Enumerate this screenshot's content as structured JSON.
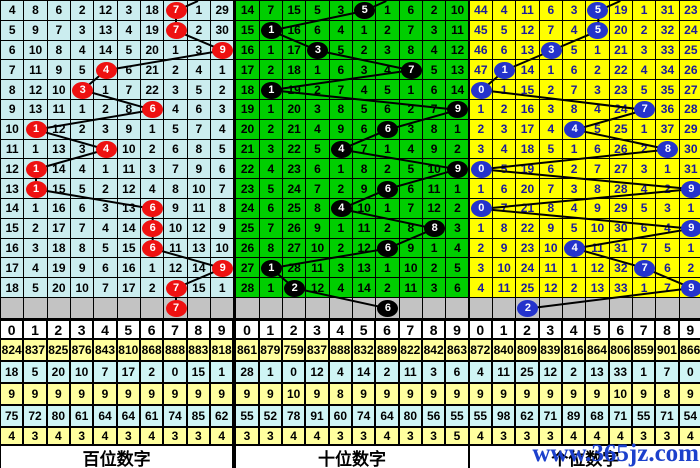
{
  "watermark": "www.365jz.com",
  "digits_header": [
    "0",
    "1",
    "2",
    "3",
    "4",
    "5",
    "6",
    "7",
    "8",
    "9"
  ],
  "chart_data": {
    "type": "table",
    "title": "lottery digit trend chart (3 panels: hundreds / tens / ones)",
    "panels": [
      {
        "id": "hundreds",
        "footer_label": "百位数字",
        "theme": {
          "cell_bg": "#cbedef",
          "text": "#000000",
          "ball": "#ee1111",
          "ball_text": "#ffffff"
        },
        "grid": [
          [
            4,
            8,
            6,
            2,
            12,
            3,
            18,
            7,
            1,
            29
          ],
          [
            5,
            9,
            7,
            3,
            13,
            4,
            19,
            7,
            2,
            30
          ],
          [
            6,
            10,
            8,
            4,
            14,
            5,
            20,
            1,
            3,
            9
          ],
          [
            7,
            11,
            9,
            5,
            4,
            6,
            21,
            2,
            4,
            1
          ],
          [
            8,
            12,
            10,
            3,
            1,
            7,
            22,
            3,
            5,
            2
          ],
          [
            9,
            13,
            11,
            1,
            2,
            8,
            6,
            4,
            6,
            3
          ],
          [
            10,
            1,
            12,
            2,
            3,
            9,
            1,
            5,
            7,
            4
          ],
          [
            11,
            1,
            13,
            3,
            4,
            10,
            2,
            6,
            8,
            5
          ],
          [
            12,
            1,
            14,
            4,
            1,
            11,
            3,
            7,
            9,
            6
          ],
          [
            13,
            1,
            15,
            5,
            2,
            12,
            4,
            8,
            10,
            7
          ],
          [
            14,
            1,
            16,
            6,
            3,
            13,
            6,
            9,
            11,
            8
          ],
          [
            15,
            2,
            17,
            7,
            4,
            14,
            6,
            10,
            12,
            9
          ],
          [
            16,
            3,
            18,
            8,
            5,
            15,
            6,
            11,
            13,
            10
          ],
          [
            17,
            4,
            19,
            9,
            6,
            16,
            1,
            12,
            14,
            9
          ],
          [
            18,
            5,
            20,
            10,
            7,
            17,
            2,
            7,
            15,
            1
          ]
        ],
        "ball_cells": [
          [
            0,
            7
          ],
          [
            1,
            7
          ],
          [
            2,
            9
          ],
          [
            3,
            4
          ],
          [
            4,
            3
          ],
          [
            5,
            6
          ],
          [
            6,
            1
          ],
          [
            7,
            4
          ],
          [
            8,
            1
          ],
          [
            9,
            1
          ],
          [
            10,
            6
          ],
          [
            11,
            6
          ],
          [
            12,
            6
          ],
          [
            13,
            9
          ],
          [
            14,
            7
          ]
        ],
        "gray_ball_col": 7,
        "stats_rows": [
          {
            "bg": "#ffff9e",
            "values": [
              824,
              837,
              825,
              876,
              843,
              810,
              868,
              888,
              883,
              818
            ]
          },
          {
            "bg": "#cff5f5",
            "values": [
              18,
              5,
              20,
              10,
              7,
              17,
              2,
              0,
              15,
              1
            ]
          },
          {
            "bg": "#ffff9e",
            "values": [
              9,
              9,
              9,
              9,
              9,
              9,
              9,
              9,
              9,
              9
            ]
          },
          {
            "bg": "#cff5f5",
            "values": [
              75,
              72,
              80,
              61,
              64,
              64,
              61,
              74,
              85,
              62
            ]
          },
          {
            "bg": "#ffff9e",
            "values": [
              4,
              3,
              4,
              3,
              4,
              3,
              4,
              3,
              3,
              4
            ]
          }
        ]
      },
      {
        "id": "tens",
        "footer_label": "十位数字",
        "theme": {
          "cell_bg": "#00ce00",
          "text": "#000000",
          "ball": "#000000",
          "ball_text": "#ffffff"
        },
        "grid": [
          [
            14,
            7,
            15,
            5,
            3,
            5,
            1,
            6,
            2,
            10
          ],
          [
            15,
            1,
            16,
            6,
            4,
            1,
            2,
            7,
            3,
            11
          ],
          [
            16,
            1,
            17,
            3,
            5,
            2,
            3,
            8,
            4,
            12
          ],
          [
            17,
            2,
            18,
            1,
            6,
            3,
            4,
            7,
            5,
            13
          ],
          [
            18,
            1,
            19,
            2,
            7,
            4,
            5,
            1,
            6,
            14
          ],
          [
            19,
            1,
            20,
            3,
            8,
            5,
            6,
            2,
            7,
            9
          ],
          [
            20,
            2,
            21,
            4,
            9,
            6,
            6,
            3,
            8,
            1
          ],
          [
            21,
            3,
            22,
            5,
            4,
            7,
            1,
            4,
            9,
            2
          ],
          [
            22,
            4,
            23,
            6,
            1,
            8,
            2,
            5,
            10,
            9
          ],
          [
            23,
            5,
            24,
            7,
            2,
            9,
            6,
            6,
            11,
            1
          ],
          [
            24,
            6,
            25,
            8,
            4,
            10,
            1,
            7,
            12,
            2
          ],
          [
            25,
            7,
            26,
            9,
            1,
            11,
            2,
            8,
            8,
            3
          ],
          [
            26,
            8,
            27,
            10,
            2,
            12,
            6,
            9,
            1,
            4
          ],
          [
            27,
            1,
            28,
            11,
            3,
            13,
            1,
            10,
            2,
            5
          ],
          [
            28,
            1,
            2,
            12,
            4,
            14,
            2,
            11,
            3,
            6
          ]
        ],
        "ball_cells": [
          [
            0,
            5
          ],
          [
            1,
            1
          ],
          [
            2,
            3
          ],
          [
            3,
            7
          ],
          [
            4,
            1
          ],
          [
            5,
            9
          ],
          [
            6,
            6
          ],
          [
            7,
            4
          ],
          [
            8,
            9
          ],
          [
            9,
            6
          ],
          [
            10,
            4
          ],
          [
            11,
            8
          ],
          [
            12,
            6
          ],
          [
            13,
            1
          ],
          [
            14,
            2
          ]
        ],
        "gray_ball_col": 6,
        "stats_rows": [
          {
            "bg": "#ffff9e",
            "values": [
              861,
              879,
              759,
              837,
              888,
              832,
              889,
              822,
              842,
              863
            ]
          },
          {
            "bg": "#cff5f5",
            "values": [
              28,
              1,
              0,
              12,
              4,
              14,
              2,
              11,
              3,
              6
            ]
          },
          {
            "bg": "#ffff9e",
            "values": [
              9,
              9,
              10,
              9,
              8,
              9,
              9,
              9,
              9,
              9
            ]
          },
          {
            "bg": "#cff5f5",
            "values": [
              55,
              52,
              78,
              91,
              60,
              74,
              64,
              80,
              56,
              55
            ]
          },
          {
            "bg": "#ffff9e",
            "values": [
              3,
              3,
              4,
              4,
              3,
              3,
              4,
              3,
              3,
              5
            ]
          }
        ]
      },
      {
        "id": "ones",
        "footer_label": "个位数字",
        "theme": {
          "cell_bg": "#ffff00",
          "text": "#1a1a9c",
          "ball": "#2433cc",
          "ball_text": "#ffffff"
        },
        "grid": [
          [
            44,
            4,
            11,
            6,
            3,
            5,
            19,
            1,
            31,
            23
          ],
          [
            45,
            5,
            12,
            7,
            4,
            5,
            20,
            2,
            32,
            24
          ],
          [
            46,
            6,
            13,
            3,
            5,
            1,
            21,
            3,
            33,
            25
          ],
          [
            47,
            1,
            14,
            1,
            6,
            2,
            22,
            4,
            34,
            26
          ],
          [
            0,
            1,
            15,
            2,
            7,
            3,
            23,
            5,
            35,
            27
          ],
          [
            1,
            2,
            16,
            3,
            8,
            4,
            24,
            7,
            36,
            28
          ],
          [
            2,
            3,
            17,
            4,
            4,
            5,
            25,
            1,
            37,
            29
          ],
          [
            3,
            4,
            18,
            5,
            1,
            6,
            26,
            2,
            8,
            30
          ],
          [
            0,
            5,
            19,
            6,
            2,
            7,
            27,
            3,
            1,
            31
          ],
          [
            1,
            6,
            20,
            7,
            3,
            8,
            28,
            4,
            2,
            9
          ],
          [
            0,
            7,
            21,
            8,
            4,
            9,
            29,
            5,
            3,
            1
          ],
          [
            1,
            8,
            22,
            9,
            5,
            10,
            30,
            6,
            4,
            9
          ],
          [
            2,
            9,
            23,
            10,
            4,
            11,
            31,
            7,
            5,
            1
          ],
          [
            3,
            10,
            24,
            11,
            1,
            12,
            32,
            7,
            6,
            2
          ],
          [
            4,
            11,
            25,
            12,
            2,
            13,
            33,
            1,
            7,
            9
          ]
        ],
        "ball_cells": [
          [
            0,
            5
          ],
          [
            1,
            5
          ],
          [
            2,
            3
          ],
          [
            3,
            1
          ],
          [
            4,
            0
          ],
          [
            5,
            7
          ],
          [
            6,
            4
          ],
          [
            7,
            8
          ],
          [
            8,
            0
          ],
          [
            9,
            9
          ],
          [
            10,
            0
          ],
          [
            11,
            9
          ],
          [
            12,
            4
          ],
          [
            13,
            7
          ],
          [
            14,
            9
          ]
        ],
        "gray_ball_col": 2,
        "stats_rows": [
          {
            "bg": "#ffff9e",
            "values": [
              872,
              840,
              809,
              839,
              816,
              864,
              806,
              859,
              901,
              866
            ]
          },
          {
            "bg": "#cff5f5",
            "values": [
              4,
              11,
              25,
              12,
              2,
              13,
              33,
              1,
              7,
              0
            ]
          },
          {
            "bg": "#ffff9e",
            "values": [
              9,
              9,
              9,
              9,
              9,
              9,
              10,
              9,
              8,
              9
            ]
          },
          {
            "bg": "#cff5f5",
            "values": [
              55,
              98,
              62,
              71,
              89,
              68,
              71,
              55,
              71,
              54
            ]
          },
          {
            "bg": "#ffff9e",
            "values": [
              4,
              3,
              3,
              3,
              4,
              4,
              4,
              3,
              3,
              4
            ]
          }
        ]
      }
    ]
  }
}
